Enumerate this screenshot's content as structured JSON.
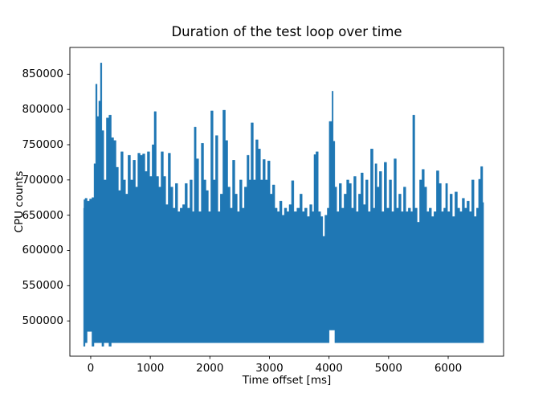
{
  "chart_data": {
    "type": "line",
    "title": "Duration of the test loop over time",
    "xlabel": "Time offset [ms]",
    "ylabel": "CPU counts",
    "line_color": "#1f77b4",
    "background_color": "#ffffff",
    "spine_color": "#000000",
    "grid": false,
    "legend": null,
    "xlim": [
      -350,
      6930
    ],
    "ylim": [
      450000,
      888000
    ],
    "xticks": [
      0,
      1000,
      2000,
      3000,
      4000,
      5000,
      6000
    ],
    "yticks": [
      500000,
      550000,
      600000,
      650000,
      700000,
      750000,
      800000,
      850000
    ],
    "floor": 469000,
    "bottom_exceptions": [
      {
        "t0": -125,
        "t1": -95,
        "v": 464000
      },
      {
        "t0": -70,
        "t1": 0,
        "v": 485000
      },
      {
        "t0": 35,
        "t1": 55,
        "v": 464000
      },
      {
        "t0": 185,
        "t1": 215,
        "v": 464000
      },
      {
        "t0": 305,
        "t1": 345,
        "v": 464000
      },
      {
        "t0": 4010,
        "t1": 4085,
        "v": 487000
      }
    ],
    "points": [
      [
        -120,
        660000
      ],
      [
        -110,
        672000
      ],
      [
        -80,
        674000
      ],
      [
        -40,
        670000
      ],
      [
        0,
        673000
      ],
      [
        40,
        675000
      ],
      [
        70,
        723000
      ],
      [
        95,
        836000
      ],
      [
        120,
        790000
      ],
      [
        150,
        812000
      ],
      [
        175,
        866000
      ],
      [
        200,
        770000
      ],
      [
        240,
        700000
      ],
      [
        285,
        788000
      ],
      [
        325,
        792000
      ],
      [
        365,
        760000
      ],
      [
        405,
        756000
      ],
      [
        445,
        718000
      ],
      [
        485,
        685000
      ],
      [
        525,
        740000
      ],
      [
        565,
        700000
      ],
      [
        605,
        680000
      ],
      [
        645,
        735000
      ],
      [
        690,
        700000
      ],
      [
        730,
        728000
      ],
      [
        770,
        690000
      ],
      [
        810,
        738000
      ],
      [
        850,
        735000
      ],
      [
        890,
        737000
      ],
      [
        930,
        712000
      ],
      [
        970,
        740000
      ],
      [
        1010,
        705000
      ],
      [
        1050,
        750000
      ],
      [
        1080,
        797000
      ],
      [
        1120,
        705000
      ],
      [
        1160,
        690000
      ],
      [
        1200,
        740000
      ],
      [
        1240,
        705000
      ],
      [
        1280,
        665000
      ],
      [
        1320,
        738000
      ],
      [
        1360,
        690000
      ],
      [
        1400,
        660000
      ],
      [
        1440,
        695000
      ],
      [
        1480,
        655000
      ],
      [
        1520,
        660000
      ],
      [
        1565,
        665000
      ],
      [
        1600,
        695000
      ],
      [
        1645,
        660000
      ],
      [
        1685,
        700000
      ],
      [
        1725,
        655000
      ],
      [
        1750,
        775000
      ],
      [
        1790,
        730000
      ],
      [
        1835,
        655000
      ],
      [
        1875,
        752000
      ],
      [
        1915,
        700000
      ],
      [
        1955,
        685000
      ],
      [
        1995,
        655000
      ],
      [
        2035,
        798000
      ],
      [
        2075,
        700000
      ],
      [
        2115,
        763000
      ],
      [
        2155,
        655000
      ],
      [
        2195,
        680000
      ],
      [
        2240,
        799000
      ],
      [
        2280,
        756000
      ],
      [
        2320,
        690000
      ],
      [
        2360,
        660000
      ],
      [
        2400,
        728000
      ],
      [
        2440,
        680000
      ],
      [
        2480,
        655000
      ],
      [
        2520,
        700000
      ],
      [
        2560,
        660000
      ],
      [
        2600,
        690000
      ],
      [
        2645,
        735000
      ],
      [
        2670,
        700000
      ],
      [
        2710,
        781000
      ],
      [
        2750,
        700000
      ],
      [
        2790,
        757000
      ],
      [
        2830,
        744000
      ],
      [
        2870,
        700000
      ],
      [
        2910,
        729000
      ],
      [
        2950,
        700000
      ],
      [
        2990,
        727000
      ],
      [
        3030,
        680000
      ],
      [
        3070,
        693000
      ],
      [
        3110,
        660000
      ],
      [
        3150,
        655000
      ],
      [
        3190,
        670000
      ],
      [
        3230,
        650000
      ],
      [
        3270,
        660000
      ],
      [
        3310,
        655000
      ],
      [
        3350,
        665000
      ],
      [
        3390,
        699000
      ],
      [
        3430,
        655000
      ],
      [
        3490,
        660000
      ],
      [
        3530,
        680000
      ],
      [
        3570,
        655000
      ],
      [
        3610,
        660000
      ],
      [
        3655,
        648000
      ],
      [
        3695,
        665000
      ],
      [
        3735,
        655000
      ],
      [
        3760,
        736000
      ],
      [
        3800,
        740000
      ],
      [
        3840,
        655000
      ],
      [
        3880,
        648000
      ],
      [
        3910,
        620000
      ],
      [
        3950,
        650000
      ],
      [
        3990,
        660000
      ],
      [
        4015,
        783000
      ],
      [
        4045,
        783000
      ],
      [
        4055,
        826000
      ],
      [
        4085,
        755000
      ],
      [
        4110,
        690000
      ],
      [
        4150,
        655000
      ],
      [
        4190,
        695000
      ],
      [
        4230,
        660000
      ],
      [
        4275,
        680000
      ],
      [
        4315,
        700000
      ],
      [
        4355,
        695000
      ],
      [
        4395,
        660000
      ],
      [
        4435,
        705000
      ],
      [
        4475,
        655000
      ],
      [
        4515,
        680000
      ],
      [
        4555,
        710000
      ],
      [
        4595,
        665000
      ],
      [
        4635,
        700000
      ],
      [
        4675,
        655000
      ],
      [
        4720,
        744000
      ],
      [
        4760,
        660000
      ],
      [
        4785,
        723000
      ],
      [
        4825,
        690000
      ],
      [
        4865,
        712000
      ],
      [
        4905,
        655000
      ],
      [
        4945,
        725000
      ],
      [
        4990,
        660000
      ],
      [
        5030,
        700000
      ],
      [
        5070,
        655000
      ],
      [
        5110,
        730000
      ],
      [
        5150,
        660000
      ],
      [
        5190,
        680000
      ],
      [
        5230,
        655000
      ],
      [
        5270,
        690000
      ],
      [
        5310,
        655000
      ],
      [
        5350,
        660000
      ],
      [
        5390,
        655000
      ],
      [
        5420,
        792000
      ],
      [
        5460,
        660000
      ],
      [
        5500,
        640000
      ],
      [
        5540,
        700000
      ],
      [
        5580,
        715000
      ],
      [
        5620,
        690000
      ],
      [
        5660,
        655000
      ],
      [
        5700,
        660000
      ],
      [
        5740,
        648000
      ],
      [
        5780,
        655000
      ],
      [
        5825,
        713000
      ],
      [
        5865,
        695000
      ],
      [
        5905,
        655000
      ],
      [
        5945,
        660000
      ],
      [
        5970,
        695000
      ],
      [
        6010,
        655000
      ],
      [
        6050,
        680000
      ],
      [
        6090,
        648000
      ],
      [
        6135,
        683000
      ],
      [
        6175,
        660000
      ],
      [
        6215,
        655000
      ],
      [
        6255,
        674000
      ],
      [
        6295,
        660000
      ],
      [
        6335,
        670000
      ],
      [
        6375,
        655000
      ],
      [
        6415,
        700000
      ],
      [
        6455,
        648000
      ],
      [
        6495,
        660000
      ],
      [
        6525,
        701000
      ],
      [
        6565,
        719000
      ],
      [
        6595,
        668000
      ]
    ]
  }
}
